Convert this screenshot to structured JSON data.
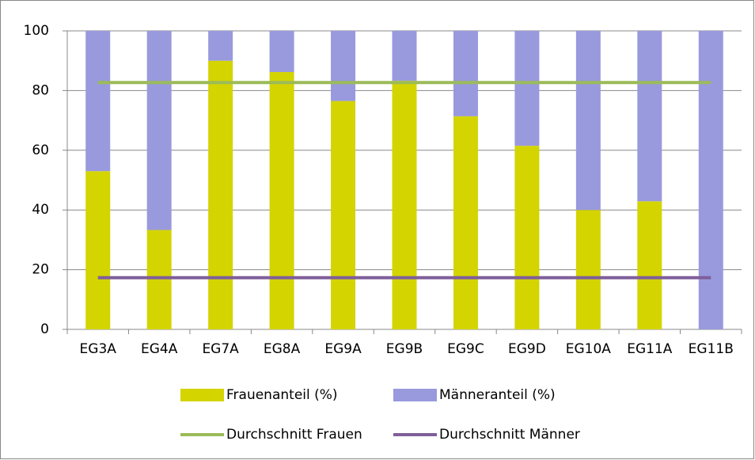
{
  "chart_data": {
    "type": "bar",
    "stacked": true,
    "categories": [
      "EG3A",
      "EG4A",
      "EG7A",
      "EG8A",
      "EG9A",
      "EG9B",
      "EG9C",
      "EG9D",
      "EG10A",
      "EG11A",
      "EG11B"
    ],
    "series": [
      {
        "name": "Frauenanteil (%)",
        "color": "#d4d400",
        "type": "bar",
        "values": [
          53,
          33.3,
          90,
          86.2,
          76.5,
          83.3,
          71.4,
          61.5,
          40,
          42.9,
          0
        ]
      },
      {
        "name": "Männeranteil (%)",
        "color": "#9999dd",
        "type": "bar",
        "values": [
          47,
          66.7,
          10,
          13.8,
          23.5,
          16.7,
          28.6,
          38.5,
          60,
          57.1,
          100
        ]
      },
      {
        "name": "Durchschnitt Frauen",
        "color": "#9bbb59",
        "type": "line",
        "values": [
          82.7,
          82.7,
          82.7,
          82.7,
          82.7,
          82.7,
          82.7,
          82.7,
          82.7,
          82.7,
          82.7
        ]
      },
      {
        "name": "Durchschnitt Männer",
        "color": "#7f5f9a",
        "type": "line",
        "values": [
          17.3,
          17.3,
          17.3,
          17.3,
          17.3,
          17.3,
          17.3,
          17.3,
          17.3,
          17.3,
          17.3
        ]
      }
    ],
    "ylim": [
      0,
      100
    ],
    "yticks": [
      0,
      20,
      40,
      60,
      80,
      100
    ],
    "grid": true,
    "legend": "bottom"
  }
}
